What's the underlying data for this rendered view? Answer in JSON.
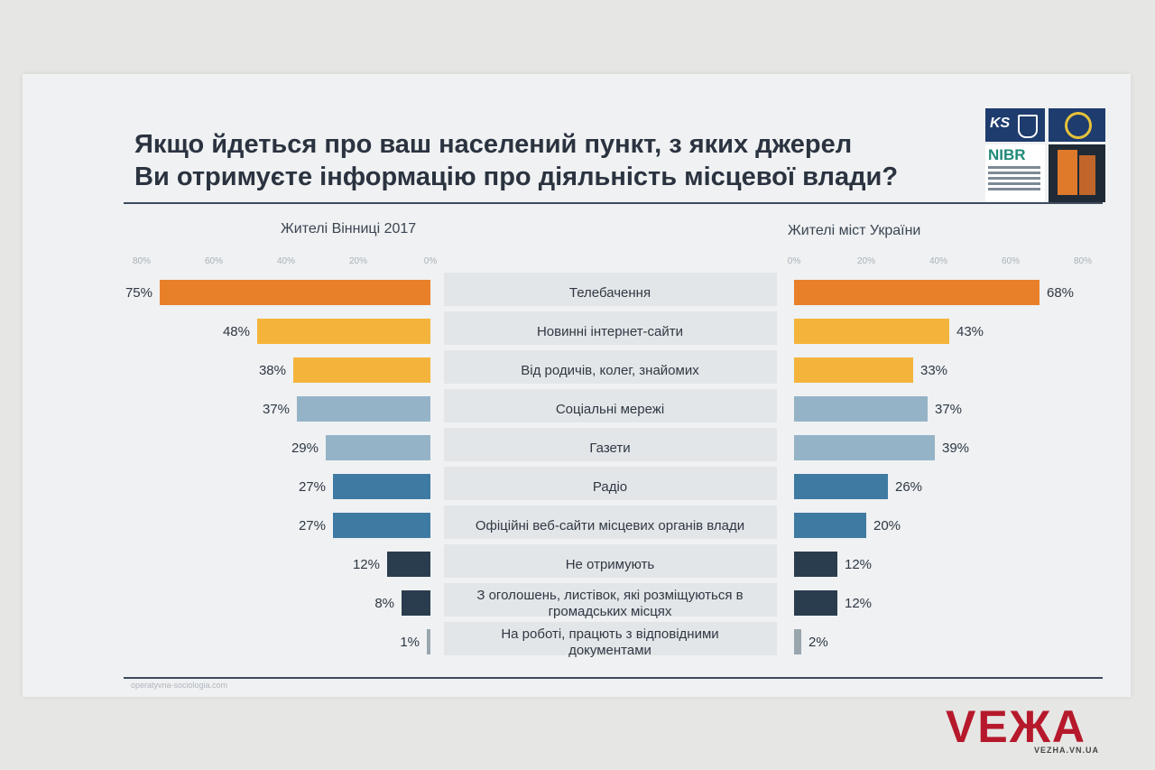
{
  "title_line1": "Якщо йдеться про ваш населений пункт, з яких джерел",
  "title_line2": "Ви отримуєте інформацію про діяльність місцевої влади?",
  "logos": {
    "ks": "KS",
    "nibr": "NIBR"
  },
  "footer_url": "operatyvna-sociologia.com",
  "watermark": {
    "brand": "VEЖA",
    "url": "VEZHA.VN.UA"
  },
  "colors": {
    "orange": "#e8802a",
    "yellow": "#f4b43b",
    "light_blue": "#95b3c7",
    "mid_blue": "#3f7aa2",
    "dark_blue": "#2a3d4e",
    "grey": "#9aa6ae"
  },
  "chart_data": {
    "type": "bar",
    "orientation": "horizontal",
    "categories": [
      "Телебачення",
      "Новинні інтернет-сайти",
      "Від родичів, колег, знайомих",
      "Соціальні мережі",
      "Газети",
      "Радіо",
      "Офіційні веб-сайти місцевих органів влади",
      "Не отримують",
      "З оголошень, листівок, які розміщуються в громадських місцях",
      "На роботі, працють з відповідними документами"
    ],
    "category_lines": [
      [
        "Телебачення"
      ],
      [
        "Новинні інтернет-сайти"
      ],
      [
        "Від родичів, колег, знайомих"
      ],
      [
        "Соціальні мережі"
      ],
      [
        "Газети"
      ],
      [
        "Радіо"
      ],
      [
        "Офіційні веб-сайти місцевих органів влади"
      ],
      [
        "Не отримують"
      ],
      [
        "З оголошень, листівок, які розміщуються в",
        "громадських місцях"
      ],
      [
        "На роботі, працють з відповідними",
        "документами"
      ]
    ],
    "bar_colors": [
      "orange",
      "yellow",
      "yellow",
      "light_blue",
      "light_blue",
      "mid_blue",
      "mid_blue",
      "dark_blue",
      "dark_blue",
      "grey"
    ],
    "series": [
      {
        "name": "Жителі Вінниці 2017",
        "values": [
          75,
          48,
          38,
          37,
          29,
          27,
          27,
          12,
          8,
          1
        ],
        "labels": [
          "75%",
          "48%",
          "38%",
          "37%",
          "29%",
          "27%",
          "27%",
          "12%",
          "8%",
          "1%"
        ],
        "direction": "left",
        "ticks": [
          "80%",
          "60%",
          "40%",
          "20%",
          "0%"
        ],
        "tick_values": [
          80,
          60,
          40,
          20,
          0
        ]
      },
      {
        "name": "Жителі міст України",
        "values": [
          68,
          43,
          33,
          37,
          39,
          26,
          20,
          12,
          12,
          2
        ],
        "labels": [
          "68%",
          "43%",
          "33%",
          "37%",
          "39%",
          "26%",
          "20%",
          "12%",
          "12%",
          "2%"
        ],
        "direction": "right",
        "ticks": [
          "0%",
          "20%",
          "40%",
          "60%",
          "80%"
        ],
        "tick_values": [
          0,
          20,
          40,
          60,
          80
        ]
      }
    ],
    "xlim": [
      0,
      80
    ]
  }
}
